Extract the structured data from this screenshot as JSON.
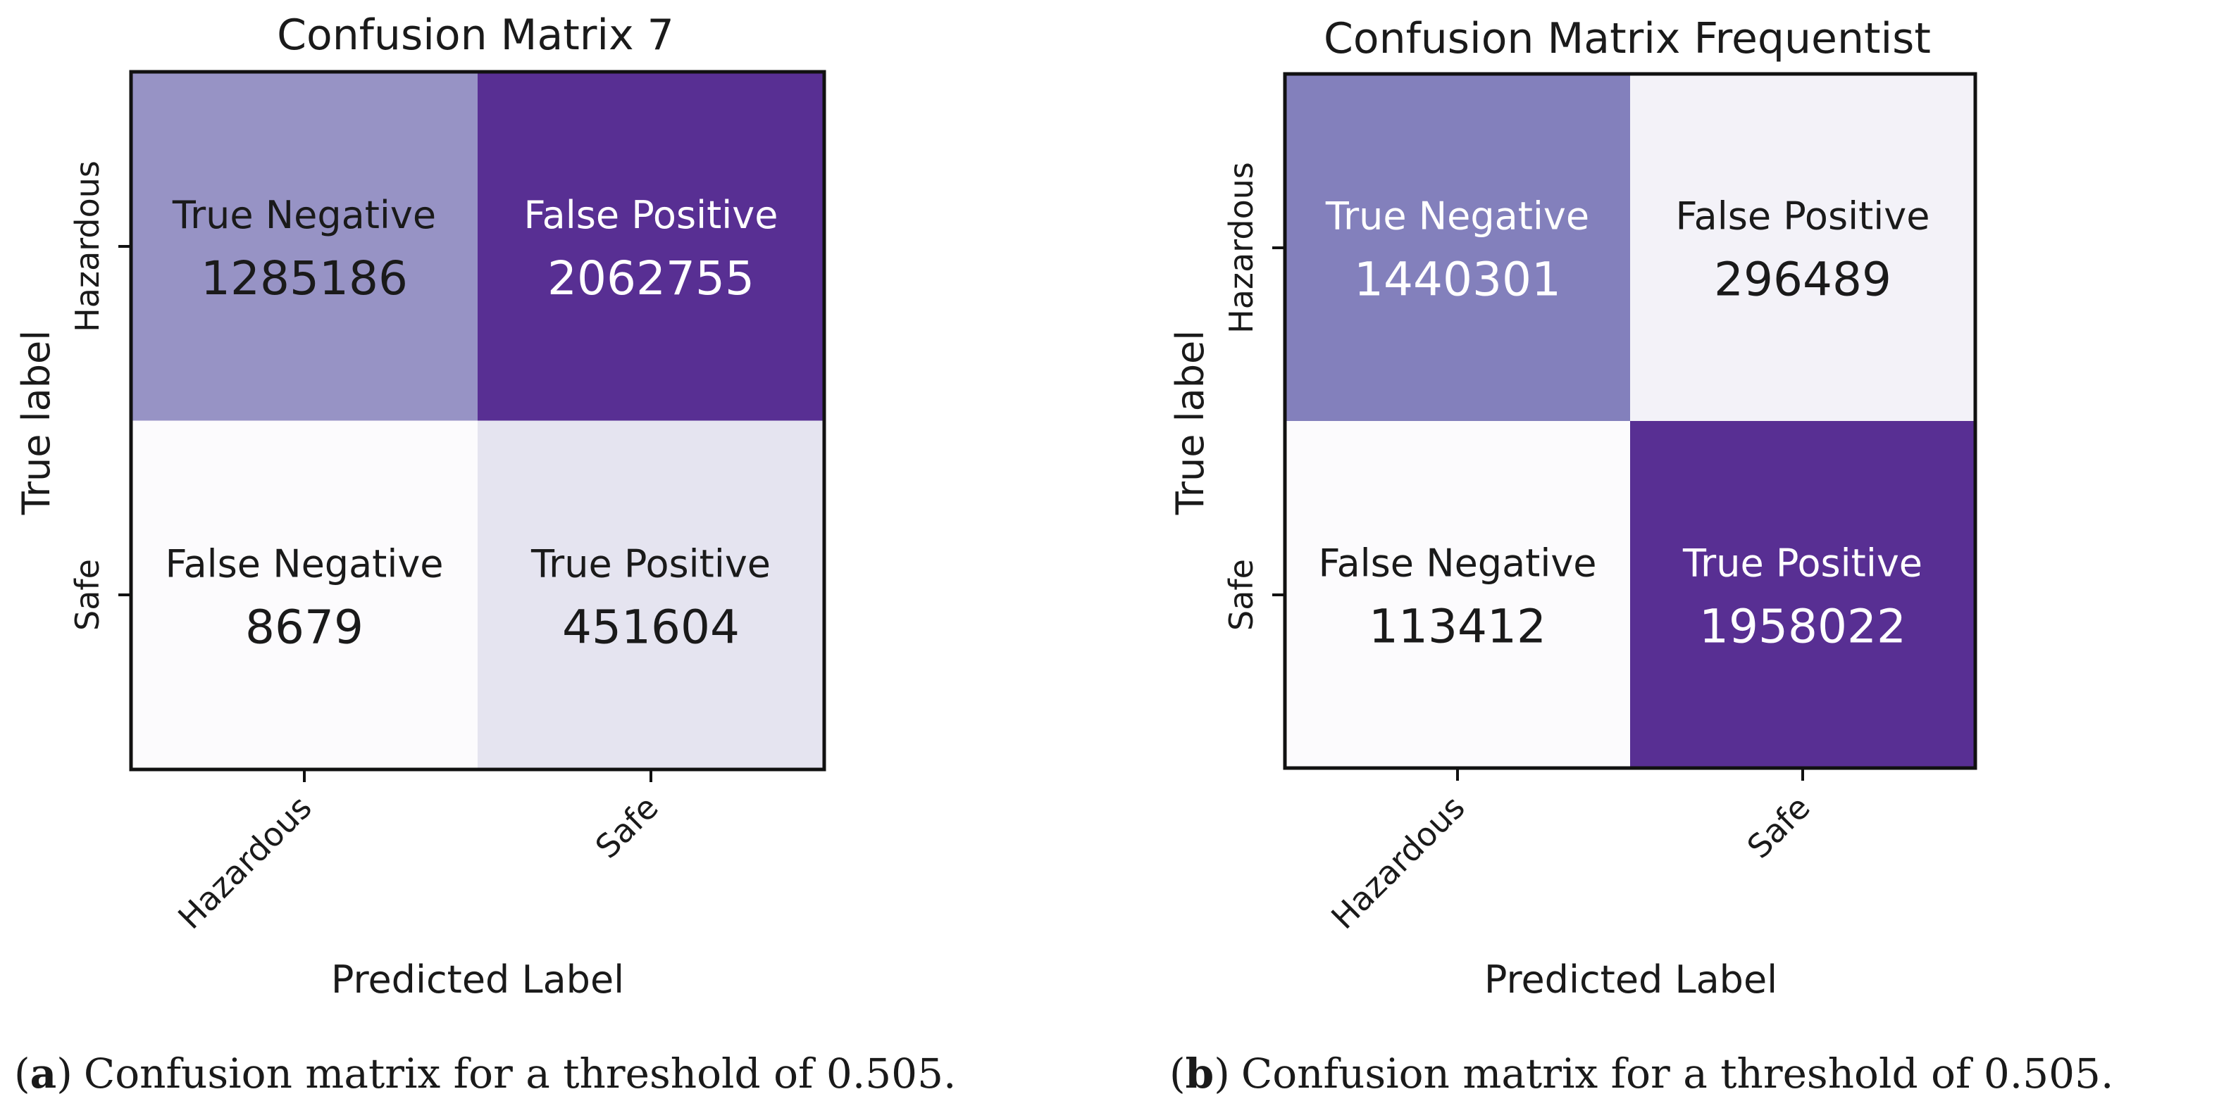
{
  "chart_data": [
    {
      "type": "heatmap",
      "title": "Confusion Matrix 7",
      "xlabel": "Predicted Label",
      "ylabel": "True label",
      "x_categories": [
        "Hazardous",
        "Safe"
      ],
      "y_categories": [
        "Hazardous",
        "Safe"
      ],
      "cells": [
        {
          "row": 0,
          "col": 0,
          "label": "True Negative",
          "value": 1285186
        },
        {
          "row": 0,
          "col": 1,
          "label": "False Positive",
          "value": 2062755
        },
        {
          "row": 1,
          "col": 0,
          "label": "False Negative",
          "value": 8679
        },
        {
          "row": 1,
          "col": 1,
          "label": "True Positive",
          "value": 451604
        }
      ],
      "colormap": "Purples",
      "grid": false,
      "caption_tag": "(a)",
      "caption_tag_letter": "a",
      "caption": "Confusion matrix for a threshold of 0.505."
    },
    {
      "type": "heatmap",
      "title": "Confusion Matrix Frequentist",
      "xlabel": "Predicted Label",
      "ylabel": "True label",
      "x_categories": [
        "Hazardous",
        "Safe"
      ],
      "y_categories": [
        "Hazardous",
        "Safe"
      ],
      "cells": [
        {
          "row": 0,
          "col": 0,
          "label": "True Negative",
          "value": 1440301
        },
        {
          "row": 0,
          "col": 1,
          "label": "False Positive",
          "value": 296489
        },
        {
          "row": 1,
          "col": 0,
          "label": "False Negative",
          "value": 113412
        },
        {
          "row": 1,
          "col": 1,
          "label": "True Positive",
          "value": 1958022
        }
      ],
      "colormap": "Purples",
      "grid": false,
      "caption_tag": "(b)",
      "caption_tag_letter": "b",
      "caption": "Confusion matrix for a threshold of 0.505."
    }
  ]
}
